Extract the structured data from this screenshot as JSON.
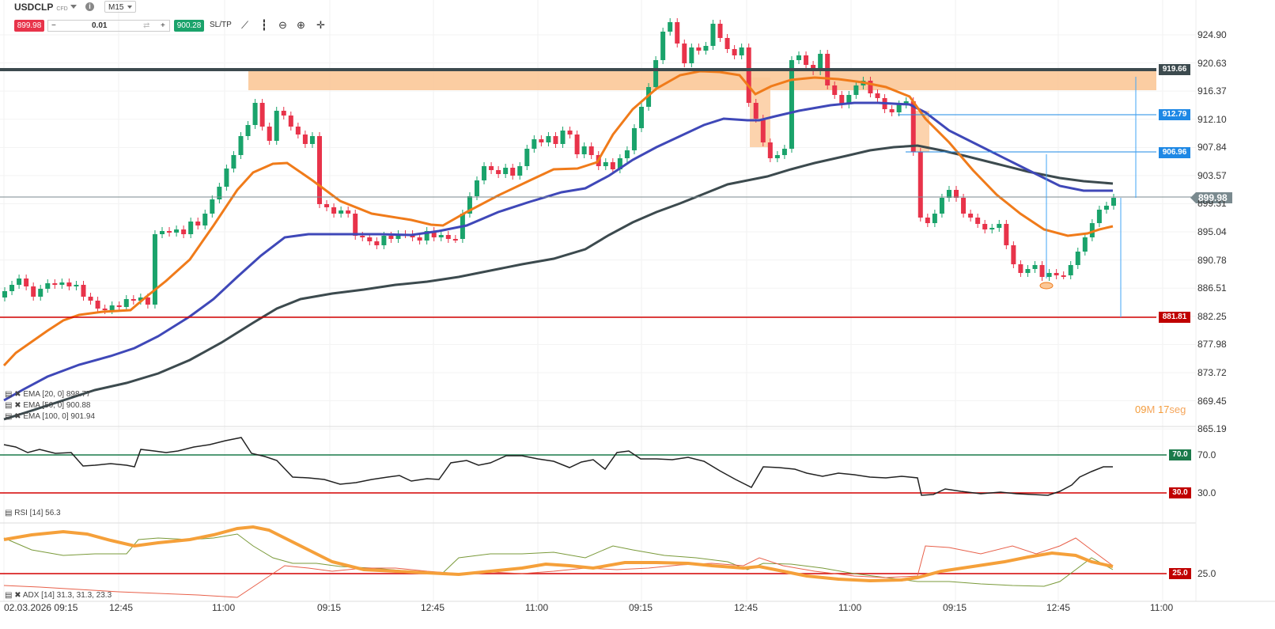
{
  "toolbar": {
    "symbol": "USDCLP",
    "symbol_type": "CFD",
    "timeframe": "M15",
    "sell_price": "899.98",
    "buy_price": "900.28",
    "quantity": "0.01",
    "minus": "−",
    "plus": "+",
    "sltp_label": "SL/TP",
    "tool_icons": [
      "line-chart-icon",
      "candlestick-icon",
      "zoom-out-icon",
      "zoom-in-icon",
      "crosshair-icon"
    ]
  },
  "price_axis": [
    "924.90",
    "920.63",
    "916.37",
    "912.10",
    "907.84",
    "903.57",
    "899.31",
    "895.04",
    "890.78",
    "886.51",
    "882.25",
    "877.98",
    "873.72",
    "869.45",
    "865.19"
  ],
  "price_tags": {
    "current": "899.98",
    "resistance": "919.66",
    "target1": "912.79",
    "target2": "906.96",
    "support": "881.81"
  },
  "time_axis": [
    "02.03.2026 09:15",
    "12:45",
    "11:00",
    "09:15",
    "12:45",
    "11:00",
    "09:15",
    "12:45",
    "11:00",
    "09:15",
    "12:45",
    "11:00"
  ],
  "legend": {
    "ema20": "EMA [20, 0] 898.77",
    "ema50": "EMA [50, 0] 900.88",
    "ema100": "EMA [100, 0] 901.94",
    "rsi": "RSI [14] 56.3",
    "adx": "ADX [14] 31.3, 31.3, 23.3"
  },
  "rsi_levels": {
    "upper": "70.0",
    "lower": "30.0"
  },
  "adx_level": "25.0",
  "countdown": {
    "min": "09",
    "min_unit": "M",
    "sec": "17",
    "sec_unit": "seg"
  },
  "colors": {
    "up": "#1aa36b",
    "down": "#e8334a",
    "ema20": "#f07b1a",
    "ema50": "#3f48b8",
    "ema100": "#3c4a4e",
    "zone": "#fbc898",
    "support": "#d40000",
    "level": "#1e88e5"
  }
}
